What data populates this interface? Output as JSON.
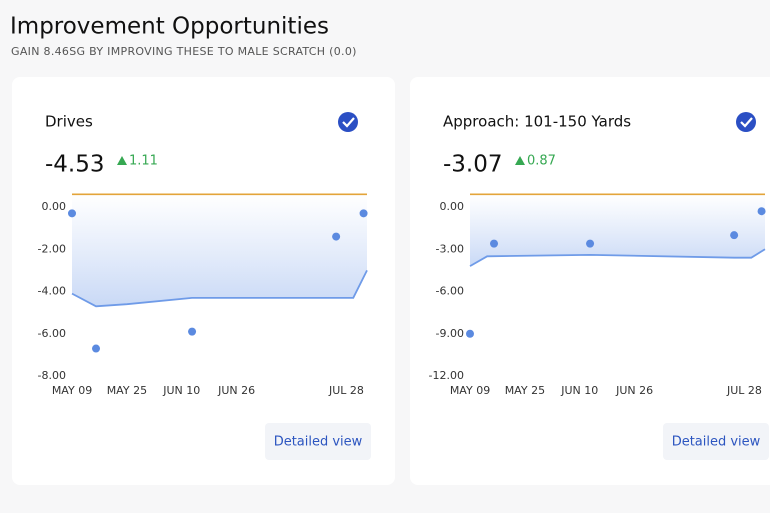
{
  "header": {
    "title": "Improvement Opportunities",
    "subtitle": "GAIN 8.46SG BY IMPROVING THESE TO MALE SCRATCH (0.0)"
  },
  "chart_data": [
    {
      "type": "line",
      "title": "Drives",
      "value": -4.53,
      "change": 1.11,
      "button": "Detailed view",
      "xlim": [
        "MAY 09",
        "AUG 03"
      ],
      "xticks": [
        "MAY 09",
        "MAY 25",
        "JUN 10",
        "JUN 26",
        "JUL 28"
      ],
      "ylim": [
        -8,
        0.6
      ],
      "yticks": [
        {
          "value": 0,
          "label": "0.00"
        },
        {
          "value": -2,
          "label": "-2.00"
        },
        {
          "value": -4,
          "label": "-4.00"
        },
        {
          "value": -6,
          "label": "-6.00"
        },
        {
          "value": -8,
          "label": "-8.00"
        }
      ],
      "target": 0.6,
      "target_color": "#e3a43a",
      "series": [
        {
          "kind": "line",
          "color": "#6f9be8",
          "x": [
            "MAY 09",
            "MAY 16",
            "MAY 25",
            "JUN 13",
            "JUL 30",
            "AUG 03"
          ],
          "values": [
            -4.1,
            -4.7,
            -4.6,
            -4.3,
            -4.3,
            -3.0
          ]
        },
        {
          "kind": "scatter",
          "color": "#5b8ae0",
          "x": [
            "MAY 09",
            "MAY 16",
            "JUN 13",
            "JUL 25",
            "AUG 02"
          ],
          "values": [
            -0.3,
            -6.7,
            -5.9,
            -1.4,
            -0.3
          ]
        }
      ]
    },
    {
      "type": "line",
      "title": "Approach: 101-150 Yards",
      "value": -3.07,
      "change": 0.87,
      "button": "Detailed view",
      "xlim": [
        "MAY 09",
        "AUG 03"
      ],
      "xticks": [
        "MAY 09",
        "MAY 25",
        "JUN 10",
        "JUN 26",
        "JUL 28"
      ],
      "ylim": [
        -12,
        0.9
      ],
      "yticks": [
        {
          "value": 0,
          "label": "0.00"
        },
        {
          "value": -3,
          "label": "-3.00"
        },
        {
          "value": -6,
          "label": "-6.00"
        },
        {
          "value": -9,
          "label": "-9.00"
        },
        {
          "value": -12,
          "label": "-12.00"
        }
      ],
      "target": 0.9,
      "target_color": "#e3a43a",
      "series": [
        {
          "kind": "line",
          "color": "#6f9be8",
          "x": [
            "MAY 09",
            "MAY 14",
            "JUN 13",
            "JUL 25",
            "JUL 30",
            "AUG 03"
          ],
          "values": [
            -4.2,
            -3.5,
            -3.4,
            -3.6,
            -3.6,
            -3.0
          ]
        },
        {
          "kind": "scatter",
          "color": "#5b8ae0",
          "x": [
            "MAY 09",
            "MAY 16",
            "JUN 13",
            "JUL 25",
            "AUG 02"
          ],
          "values": [
            -9.0,
            -2.6,
            -2.6,
            -2.0,
            -0.3
          ]
        }
      ]
    }
  ]
}
